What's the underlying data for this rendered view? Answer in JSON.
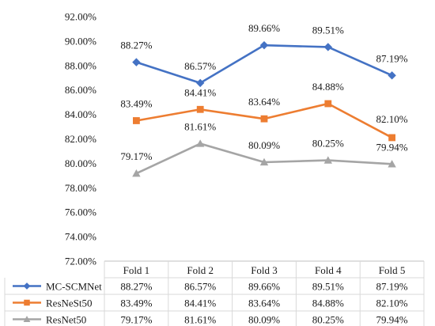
{
  "chart_data": {
    "type": "line",
    "title": "",
    "xlabel": "",
    "ylabel": "",
    "categories": [
      "Fold 1",
      "Fold 2",
      "Fold 3",
      "Fold 4",
      "Fold 5"
    ],
    "ylim": [
      72,
      92
    ],
    "ytick_step": 2,
    "ytick_labels": [
      "72.00%",
      "74.00%",
      "76.00%",
      "78.00%",
      "80.00%",
      "82.00%",
      "84.00%",
      "86.00%",
      "88.00%",
      "90.00%",
      "92.00%"
    ],
    "grid": false,
    "legend": "data-table-below",
    "series": [
      {
        "name": "MC-SCMNet",
        "color": "#4472C4",
        "marker": "diamond",
        "values": [
          88.27,
          86.57,
          89.66,
          89.51,
          87.19
        ],
        "labels": [
          "88.27%",
          "86.57%",
          "89.66%",
          "89.51%",
          "87.19%"
        ]
      },
      {
        "name": "ResNeSt50",
        "color": "#ED7D31",
        "marker": "square",
        "values": [
          83.49,
          84.41,
          83.64,
          84.88,
          82.1
        ],
        "labels": [
          "83.49%",
          "84.41%",
          "83.64%",
          "84.88%",
          "82.10%"
        ]
      },
      {
        "name": "ResNet50",
        "color": "#A5A5A5",
        "marker": "triangle",
        "values": [
          79.17,
          81.61,
          80.09,
          80.25,
          79.94
        ],
        "labels": [
          "79.17%",
          "81.61%",
          "80.09%",
          "80.25%",
          "79.94%"
        ]
      }
    ]
  }
}
